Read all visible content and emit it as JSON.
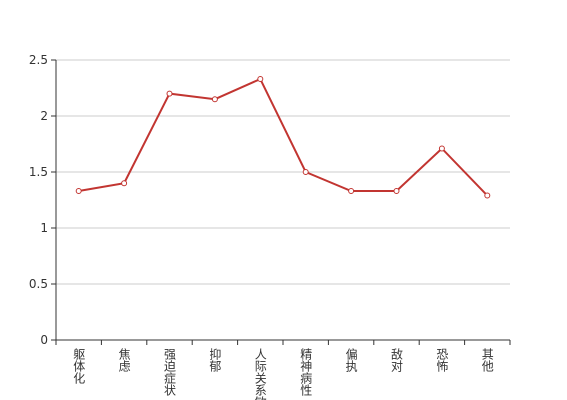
{
  "chart_data": {
    "type": "line",
    "categories": [
      "躯体化",
      "焦虑",
      "强迫症状",
      "抑郁",
      "人际关系敏感",
      "精神病性",
      "偏执",
      "敌对",
      "恐怖",
      "其他"
    ],
    "values": [
      1.33,
      1.4,
      2.2,
      2.15,
      2.33,
      1.5,
      1.33,
      1.33,
      1.71,
      1.29
    ],
    "color": "#c23531",
    "ylim": [
      0,
      2.5
    ],
    "yticks": [
      0,
      0.5,
      1,
      1.5,
      2,
      2.5
    ],
    "grid": true
  }
}
